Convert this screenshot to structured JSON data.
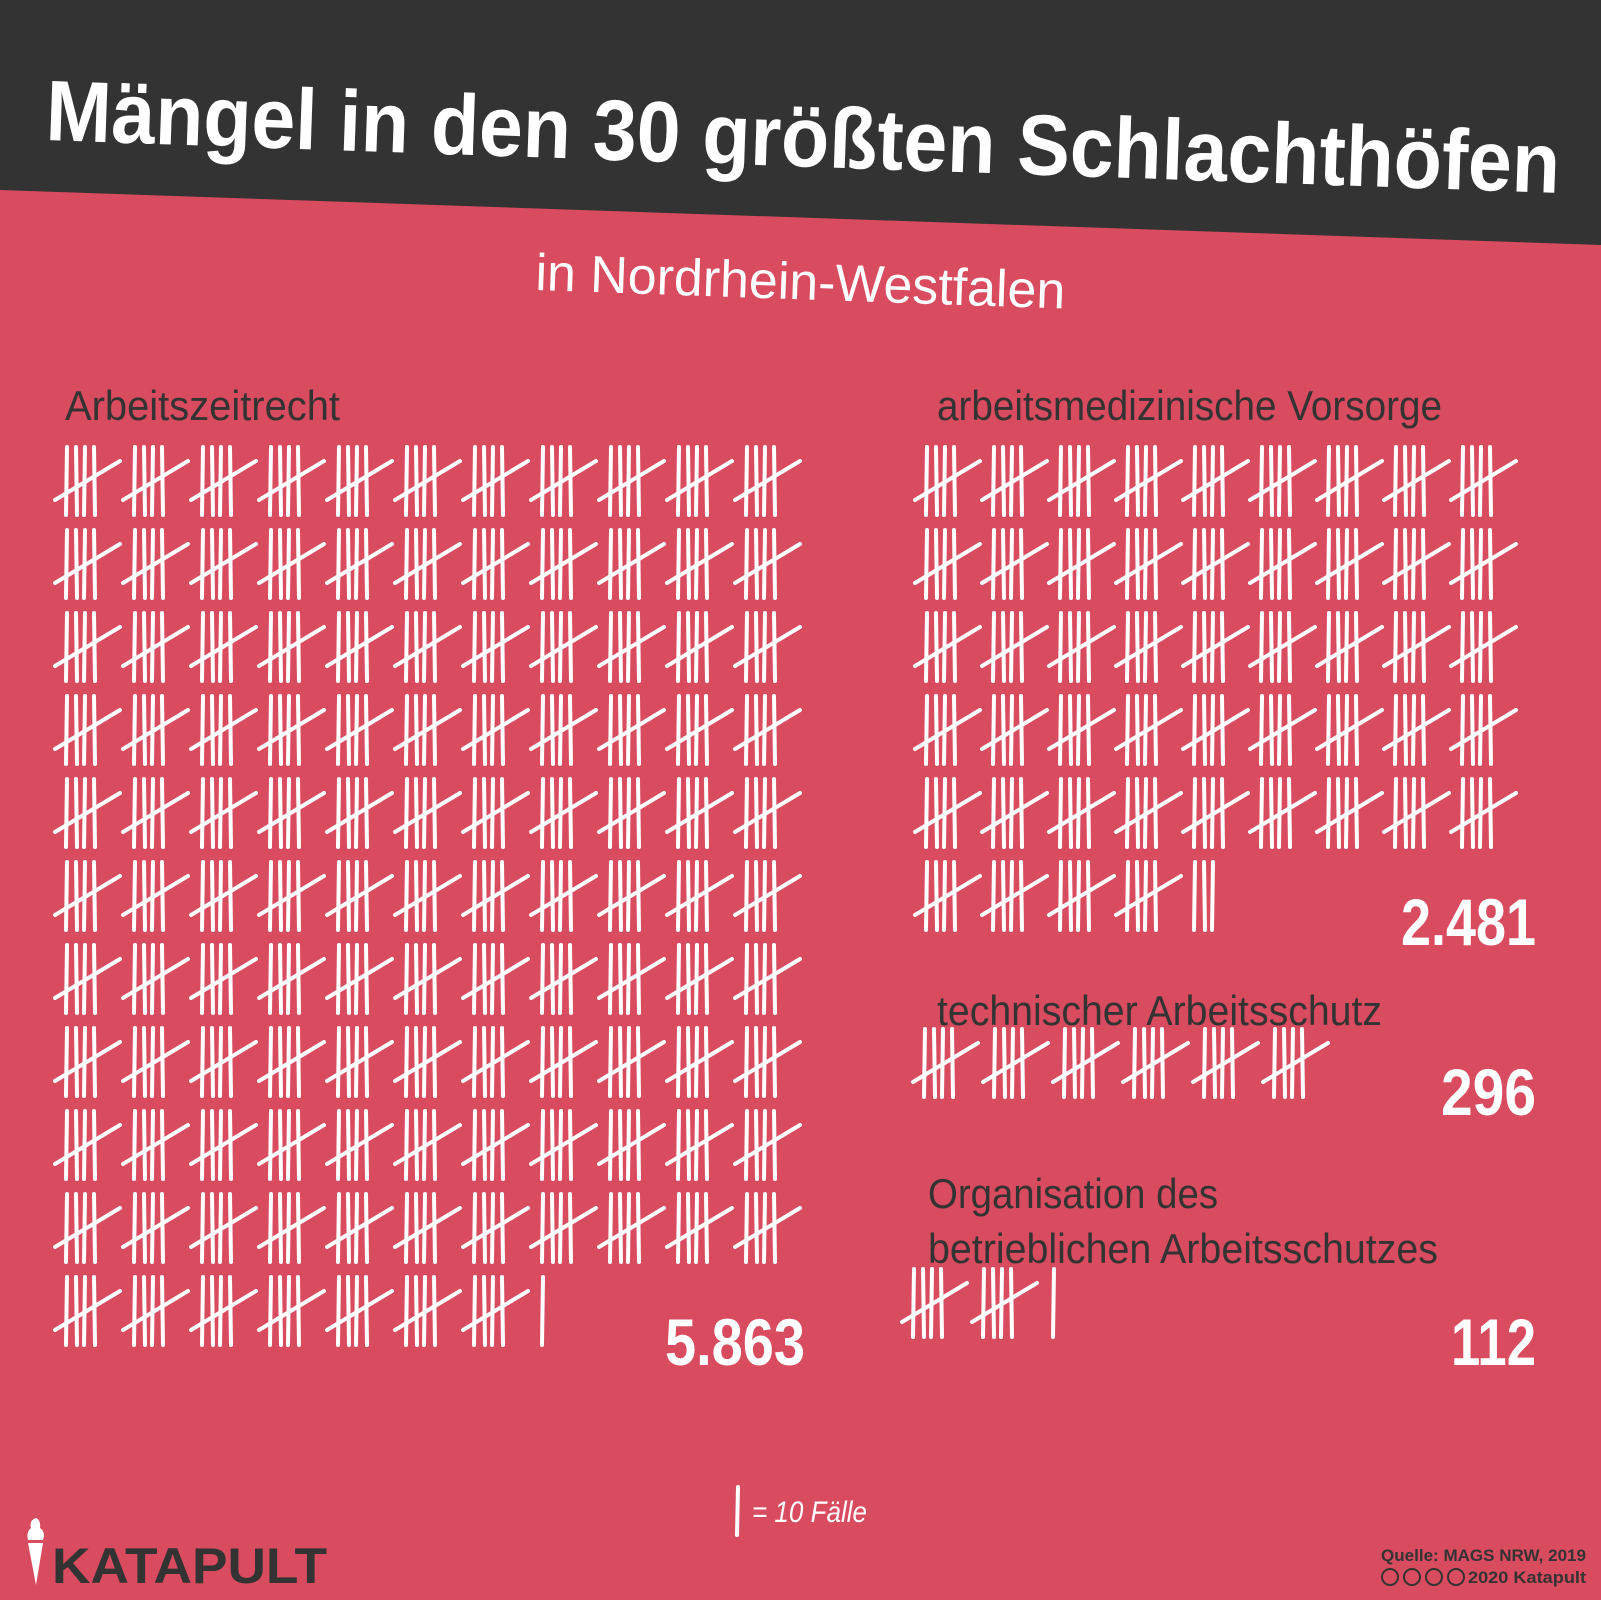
{
  "title": "Mängel in den 30 größten Schlachthöfen",
  "subtitle": "in Nordrhein-Westfalen",
  "colors": {
    "background": "#d94b5e",
    "banner": "#333333",
    "tally": "#ffffff",
    "label": "#333333"
  },
  "chart_data": {
    "type": "bar",
    "style": "tally marks",
    "title": "Mängel in den 30 größten Schlachthöfen",
    "subtitle": "in Nordrhein-Westfalen",
    "categories": [
      "Arbeitszeitrecht",
      "arbeitsmedizinische Vorsorge",
      "technischer Arbeitsschutz",
      "Organisation des betrieblichen Arbeitsschutzes"
    ],
    "values": [
      5863,
      2481,
      296,
      112
    ],
    "value_labels": [
      "5.863",
      "2.481",
      "296",
      "112"
    ],
    "label_lines": [
      [
        "Arbeitszeitrecht"
      ],
      [
        "arbeitsmedizinische Vorsorge"
      ],
      [
        "technischer Arbeitsschutz"
      ],
      [
        "Organisation des",
        "betrieblichen Arbeitsschutzes"
      ]
    ],
    "unit_per_mark": 10,
    "legend": "= 10 Fälle"
  },
  "footer": {
    "logo": "KATAPULT",
    "source": "Quelle: MAGS NRW, 2019",
    "license": "2020 Katapult",
    "license_icons": [
      "cc-icon",
      "by-icon",
      "nc-icon",
      "nd-icon"
    ]
  }
}
